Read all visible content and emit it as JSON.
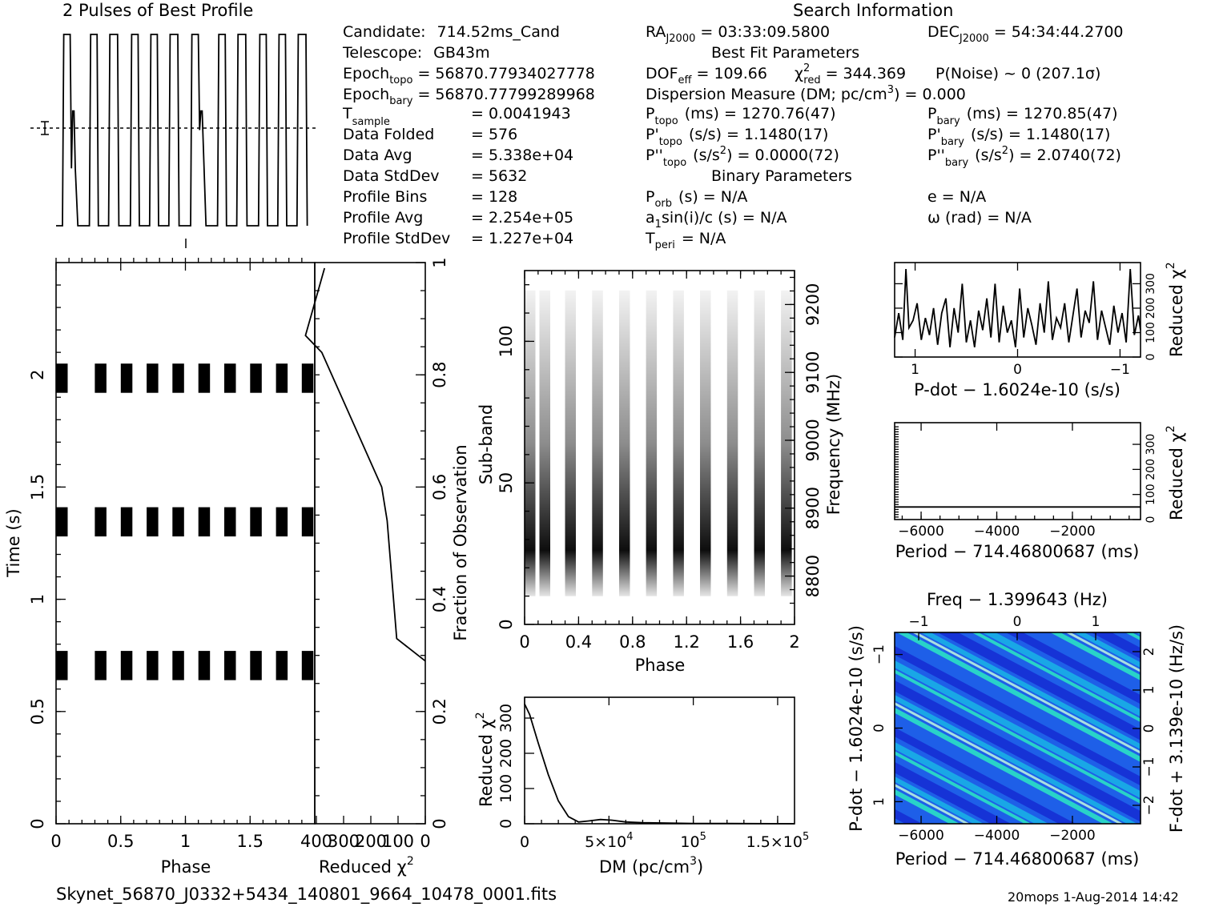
{
  "footer": {
    "filename": "Skynet_56870_J0332+5434_140801_9664_10478_0001.fits",
    "stamp": "20mops  1-Aug-2014 14:42"
  },
  "info": {
    "search_title": "Search Information",
    "candidate_label": "Candidate:",
    "candidate": "714.52ms_Cand",
    "telescope_label": "Telescope:",
    "telescope": "GB43m",
    "epoch_topo_label": "Epoch",
    "epoch_topo_sub": "topo",
    "epoch_topo": "= 56870.77934027778",
    "epoch_bary_label": "Epoch",
    "epoch_bary_sub": "bary",
    "epoch_bary": "= 56870.77799289968",
    "tsample_label": "T",
    "tsample_sub": "sample",
    "tsample": "=   0.0041943",
    "data_folded_label": "Data Folded",
    "data_folded": "=   576",
    "data_avg_label": "Data Avg",
    "data_avg": "=   5.338e+04",
    "data_std_label": "Data StdDev",
    "data_std": "=   5632",
    "prof_bins_label": "Profile Bins",
    "prof_bins": "=   128",
    "prof_avg_label": "Profile Avg",
    "prof_avg": "=   2.254e+05",
    "prof_std_label": "Profile StdDev",
    "prof_std": "=   1.227e+04",
    "ra_label": "RA",
    "ra_sub": "J2000",
    "ra": "= 03:33:09.5800",
    "dec_label": "DEC",
    "dec_sub": "J2000",
    "dec": "= 54:34:44.2700",
    "best_fit_title": "Best Fit Parameters",
    "dof_label": "DOF",
    "dof_sub": "eff",
    "dof": "= 109.66",
    "chi_label": "χ",
    "chi_sup": "2",
    "chi_sub": "red",
    "chi": "= 344.369",
    "pnoise": "P(Noise) ~ 0    (207.1σ)",
    "dm_line": "Dispersion Measure (DM; pc/cm",
    "dm_sup": "3",
    "dm_value": ") = 0.000",
    "ptopo_label": "P",
    "ptopo_sub": "topo",
    "ptopo": "(ms) =   1270.76(47)",
    "pbary_label": "P",
    "pbary_sub": "bary",
    "pbary": "(ms) =   1270.85(47)",
    "pdtopo_label": "P'",
    "pdtopo_sub": "topo",
    "pdtopo": "(s/s) =   1.1480(17)",
    "pdbary_label": "P'",
    "pdbary_sub": "bary",
    "pdbary": "(s/s) =   1.1480(17)",
    "pddtopo_label": "P''",
    "pddtopo_sub": "topo",
    "pddtopo_unit": "(s/s",
    "pddtopo_sup": "2",
    "pddtopo": ") =   0.0000(72)",
    "pddbary_label": "P''",
    "pddbary_sub": "bary",
    "pddbary_unit": "(s/s",
    "pddbary_sup": "2",
    "pddbary": ") =   2.0740(72)",
    "binary_title": "Binary Parameters",
    "porb_label": "P",
    "porb_sub": "orb",
    "porb": "(s) = N/A",
    "e": "e = N/A",
    "a1_label": "a",
    "a1_sub": "1",
    "a1": "sin(i)/c (s) = N/A",
    "omega": "ω (rad) = N/A",
    "tperi_label": "T",
    "tperi_sub": "peri",
    "tperi": "= N/A"
  },
  "chart_data": [
    {
      "id": "profile",
      "type": "line",
      "title": "2 Pulses of Best Profile",
      "xlim": [
        0,
        2
      ],
      "description_note": "square-wave-like profile, 2 pulses",
      "x": [
        0.0,
        0.05,
        0.06,
        0.11,
        0.12,
        0.13,
        0.14,
        0.15,
        0.17,
        0.26,
        0.27,
        0.32,
        0.33,
        0.41,
        0.42,
        0.48,
        0.49,
        0.58,
        0.59,
        0.64,
        0.65,
        0.73,
        0.74,
        0.79,
        0.8,
        0.88,
        0.89,
        0.95,
        0.96,
        1.05,
        1.06,
        1.11,
        1.12,
        1.13,
        1.14,
        1.17,
        1.26,
        1.27,
        1.32,
        1.33,
        1.41,
        1.42,
        1.48,
        1.49,
        1.58,
        1.59,
        1.64,
        1.65,
        1.73,
        1.74,
        1.79,
        1.8,
        1.88,
        1.89,
        1.95,
        1.96
      ],
      "y": [
        0.0,
        0.0,
        1.0,
        1.0,
        0.3,
        0.6,
        0.6,
        0.3,
        0.0,
        0.0,
        1.0,
        1.0,
        0.0,
        0.0,
        1.0,
        1.0,
        0.0,
        0.0,
        1.0,
        1.0,
        0.0,
        0.0,
        1.0,
        1.0,
        0.0,
        0.0,
        1.0,
        1.0,
        0.0,
        0.0,
        1.0,
        1.0,
        0.5,
        0.6,
        0.6,
        0.0,
        0.0,
        1.0,
        1.0,
        0.0,
        0.0,
        1.0,
        1.0,
        0.0,
        0.0,
        1.0,
        1.0,
        0.0,
        0.0,
        1.0,
        1.0,
        0.0,
        0.0,
        1.0,
        1.0,
        0.0
      ]
    },
    {
      "id": "time_phase",
      "type": "heatmap",
      "xlabel": "Phase",
      "ylabel": "Time (s)",
      "xlim": [
        0,
        2
      ],
      "ylim": [
        0,
        2.5
      ],
      "x_ticks": [
        "0",
        "0.5",
        "1",
        "1.5"
      ],
      "x_tick_values": [
        0,
        0.5,
        1,
        1.5
      ],
      "y_ticks": [
        "0",
        "0.5",
        "1",
        "1.5",
        "2"
      ],
      "y_tick_values": [
        0,
        0.5,
        1,
        1.5,
        2
      ],
      "time_bands": [
        [
          0.64,
          0.77
        ],
        [
          1.28,
          1.41
        ],
        [
          1.92,
          2.05
        ]
      ],
      "pulse_phase_starts": [
        0.0,
        0.3,
        0.5,
        0.7,
        0.9,
        1.1,
        1.3,
        1.5,
        1.7,
        1.9
      ],
      "pulse_width": 0.09,
      "right_ylabel": "Fraction of Observation",
      "right_ticks": [
        "0",
        "0.2",
        "0.4",
        "0.6",
        "0.8",
        "1"
      ],
      "right_tick_values": [
        0,
        0.2,
        0.4,
        0.6,
        0.8,
        1
      ]
    },
    {
      "id": "redchi_time",
      "type": "line",
      "xlabel": "Reduced χ",
      "xlabel_sup": "2",
      "x_ticks": [
        "400",
        "300",
        "200",
        "100",
        "0"
      ],
      "x_tick_values": [
        400,
        300,
        200,
        100,
        0
      ],
      "xlim": [
        400,
        0
      ],
      "ylim": [
        0,
        1
      ],
      "x": [
        0,
        105,
        140,
        160,
        380,
        440,
        370
      ],
      "y": [
        0.29,
        0.33,
        0.54,
        0.6,
        0.84,
        0.87,
        0.99
      ]
    },
    {
      "id": "subband_phase",
      "type": "heatmap",
      "xlabel": "Phase",
      "ylabel": "Sub-band",
      "xlim": [
        0,
        2
      ],
      "ylim": [
        0,
        125
      ],
      "x_ticks": [
        "0",
        "0.4",
        "0.8",
        "1.2",
        "1.6",
        "2"
      ],
      "x_tick_values": [
        0,
        0.4,
        0.8,
        1.2,
        1.6,
        2
      ],
      "y_ticks": [
        "0",
        "50",
        "100"
      ],
      "y_tick_values": [
        0,
        50,
        100
      ],
      "right_ylabel": "Frequency (MHz)",
      "right_ticks": [
        "8800",
        "8900",
        "9000",
        "9100",
        "9200"
      ],
      "right_tick_values": [
        8800,
        8900,
        9000,
        9100,
        9200
      ],
      "freq_lim": [
        8750,
        9250
      ],
      "signal_subbands": [
        10,
        118
      ],
      "pulse_phase_starts": [
        0.0,
        0.11,
        0.3,
        0.5,
        0.7,
        0.9,
        1.1,
        1.3,
        1.5,
        1.7,
        1.9
      ],
      "pulse_width": 0.08
    },
    {
      "id": "dm_chi",
      "type": "line",
      "xlabel": "DM (pc/cm",
      "xlabel_sup": "3",
      "xlabel_end": ")",
      "ylabel": "Reduced χ",
      "ylabel_sup": "2",
      "xlim": [
        0,
        160000
      ],
      "ylim": [
        0,
        350
      ],
      "x_ticks": [
        "0",
        "5×10",
        "10",
        "1.5×10"
      ],
      "x_tick_sups": [
        "",
        "4",
        "5",
        "5"
      ],
      "x_tick_values": [
        0,
        50000,
        100000,
        150000
      ],
      "y_ticks": [
        "0",
        "100",
        "200",
        "300"
      ],
      "y_tick_values": [
        0,
        100,
        200,
        300
      ],
      "x": [
        0,
        3000,
        8000,
        14000,
        20000,
        26000,
        32000,
        38000,
        45000,
        52000,
        60000,
        70000,
        85000,
        100000,
        120000,
        160000
      ],
      "y": [
        340,
        310,
        230,
        140,
        65,
        20,
        5,
        8,
        12,
        10,
        5,
        3,
        2,
        1,
        1,
        0
      ]
    },
    {
      "id": "pdot_chi",
      "type": "line",
      "xlabel": "P-dot − 1.6024e-10 (s/s)",
      "ylabel": "Reduced χ",
      "ylabel_sup": "2",
      "xlim": [
        1.2,
        -1.2
      ],
      "ylim": [
        0,
        380
      ],
      "x_ticks": [
        "1",
        "0",
        "−1"
      ],
      "x_tick_values": [
        1,
        0,
        -1
      ],
      "y_ticks": [
        "0",
        "100",
        "200",
        "300"
      ],
      "y_tick_values": [
        0,
        100,
        200,
        300
      ],
      "x": [
        1.2,
        1.16,
        1.12,
        1.09,
        1.06,
        1.02,
        0.98,
        0.94,
        0.9,
        0.86,
        0.82,
        0.78,
        0.74,
        0.7,
        0.66,
        0.62,
        0.58,
        0.54,
        0.5,
        0.46,
        0.42,
        0.38,
        0.34,
        0.3,
        0.26,
        0.22,
        0.18,
        0.14,
        0.1,
        0.06,
        0.02,
        -0.02,
        -0.06,
        -0.1,
        -0.14,
        -0.18,
        -0.22,
        -0.26,
        -0.3,
        -0.34,
        -0.38,
        -0.42,
        -0.46,
        -0.5,
        -0.54,
        -0.58,
        -0.62,
        -0.66,
        -0.7,
        -0.74,
        -0.78,
        -0.82,
        -0.86,
        -0.9,
        -0.94,
        -0.98,
        -1.02,
        -1.06,
        -1.1,
        -1.14,
        -1.18,
        -1.2
      ],
      "y": [
        80,
        180,
        70,
        360,
        120,
        150,
        220,
        70,
        160,
        90,
        200,
        50,
        180,
        240,
        40,
        200,
        100,
        300,
        60,
        150,
        40,
        190,
        110,
        240,
        80,
        300,
        60,
        210,
        100,
        150,
        40,
        280,
        80,
        200,
        130,
        50,
        220,
        100,
        310,
        70,
        160,
        120,
        220,
        60,
        170,
        280,
        80,
        190,
        140,
        310,
        70,
        190,
        120,
        50,
        210,
        100,
        180,
        60,
        360,
        90,
        170,
        110
      ]
    },
    {
      "id": "period_chi",
      "type": "line",
      "xlabel": "Period − 714.46800687 (ms)",
      "ylabel": "Reduced χ",
      "ylabel_sup": "2",
      "xlim": [
        -6700,
        -200
      ],
      "ylim": [
        0,
        380
      ],
      "x_ticks": [
        "−6000",
        "−4000",
        "−2000"
      ],
      "x_tick_values": [
        -6000,
        -4000,
        -2000
      ],
      "y_ticks": [
        "0",
        "100",
        "200",
        "300"
      ],
      "y_tick_values": [
        0,
        100,
        200,
        300
      ],
      "x": [
        -6700,
        -200
      ],
      "y": [
        50,
        50
      ]
    },
    {
      "id": "pp_dot",
      "type": "heatmap",
      "xlabel": "Period − 714.46800687 (ms)",
      "ylabel": "P-dot − 1.6024e-10 (s/s)",
      "top_xlabel": "Freq − 1.399643 (Hz)",
      "right_ylabel": "F-dot + 3.139e-10 (Hz/s)",
      "xlim": [
        -6700,
        -200
      ],
      "ylim": [
        1.3,
        -1.3
      ],
      "x_ticks": [
        "−6000",
        "−4000",
        "−2000"
      ],
      "x_tick_values": [
        -6000,
        -4000,
        -2000
      ],
      "y_ticks": [
        "−1",
        "0",
        "1"
      ],
      "y_tick_values": [
        -1,
        0,
        1
      ],
      "top_ticks": [
        "−1",
        "0",
        "1"
      ],
      "right_ticks": [
        "2",
        "1",
        "0",
        "−1",
        "−2"
      ],
      "colors": [
        "#1633d6",
        "#1e66ee",
        "#19a7e6",
        "#29d3c8",
        "#a8e0e0",
        "#d9f0f0"
      ]
    }
  ]
}
